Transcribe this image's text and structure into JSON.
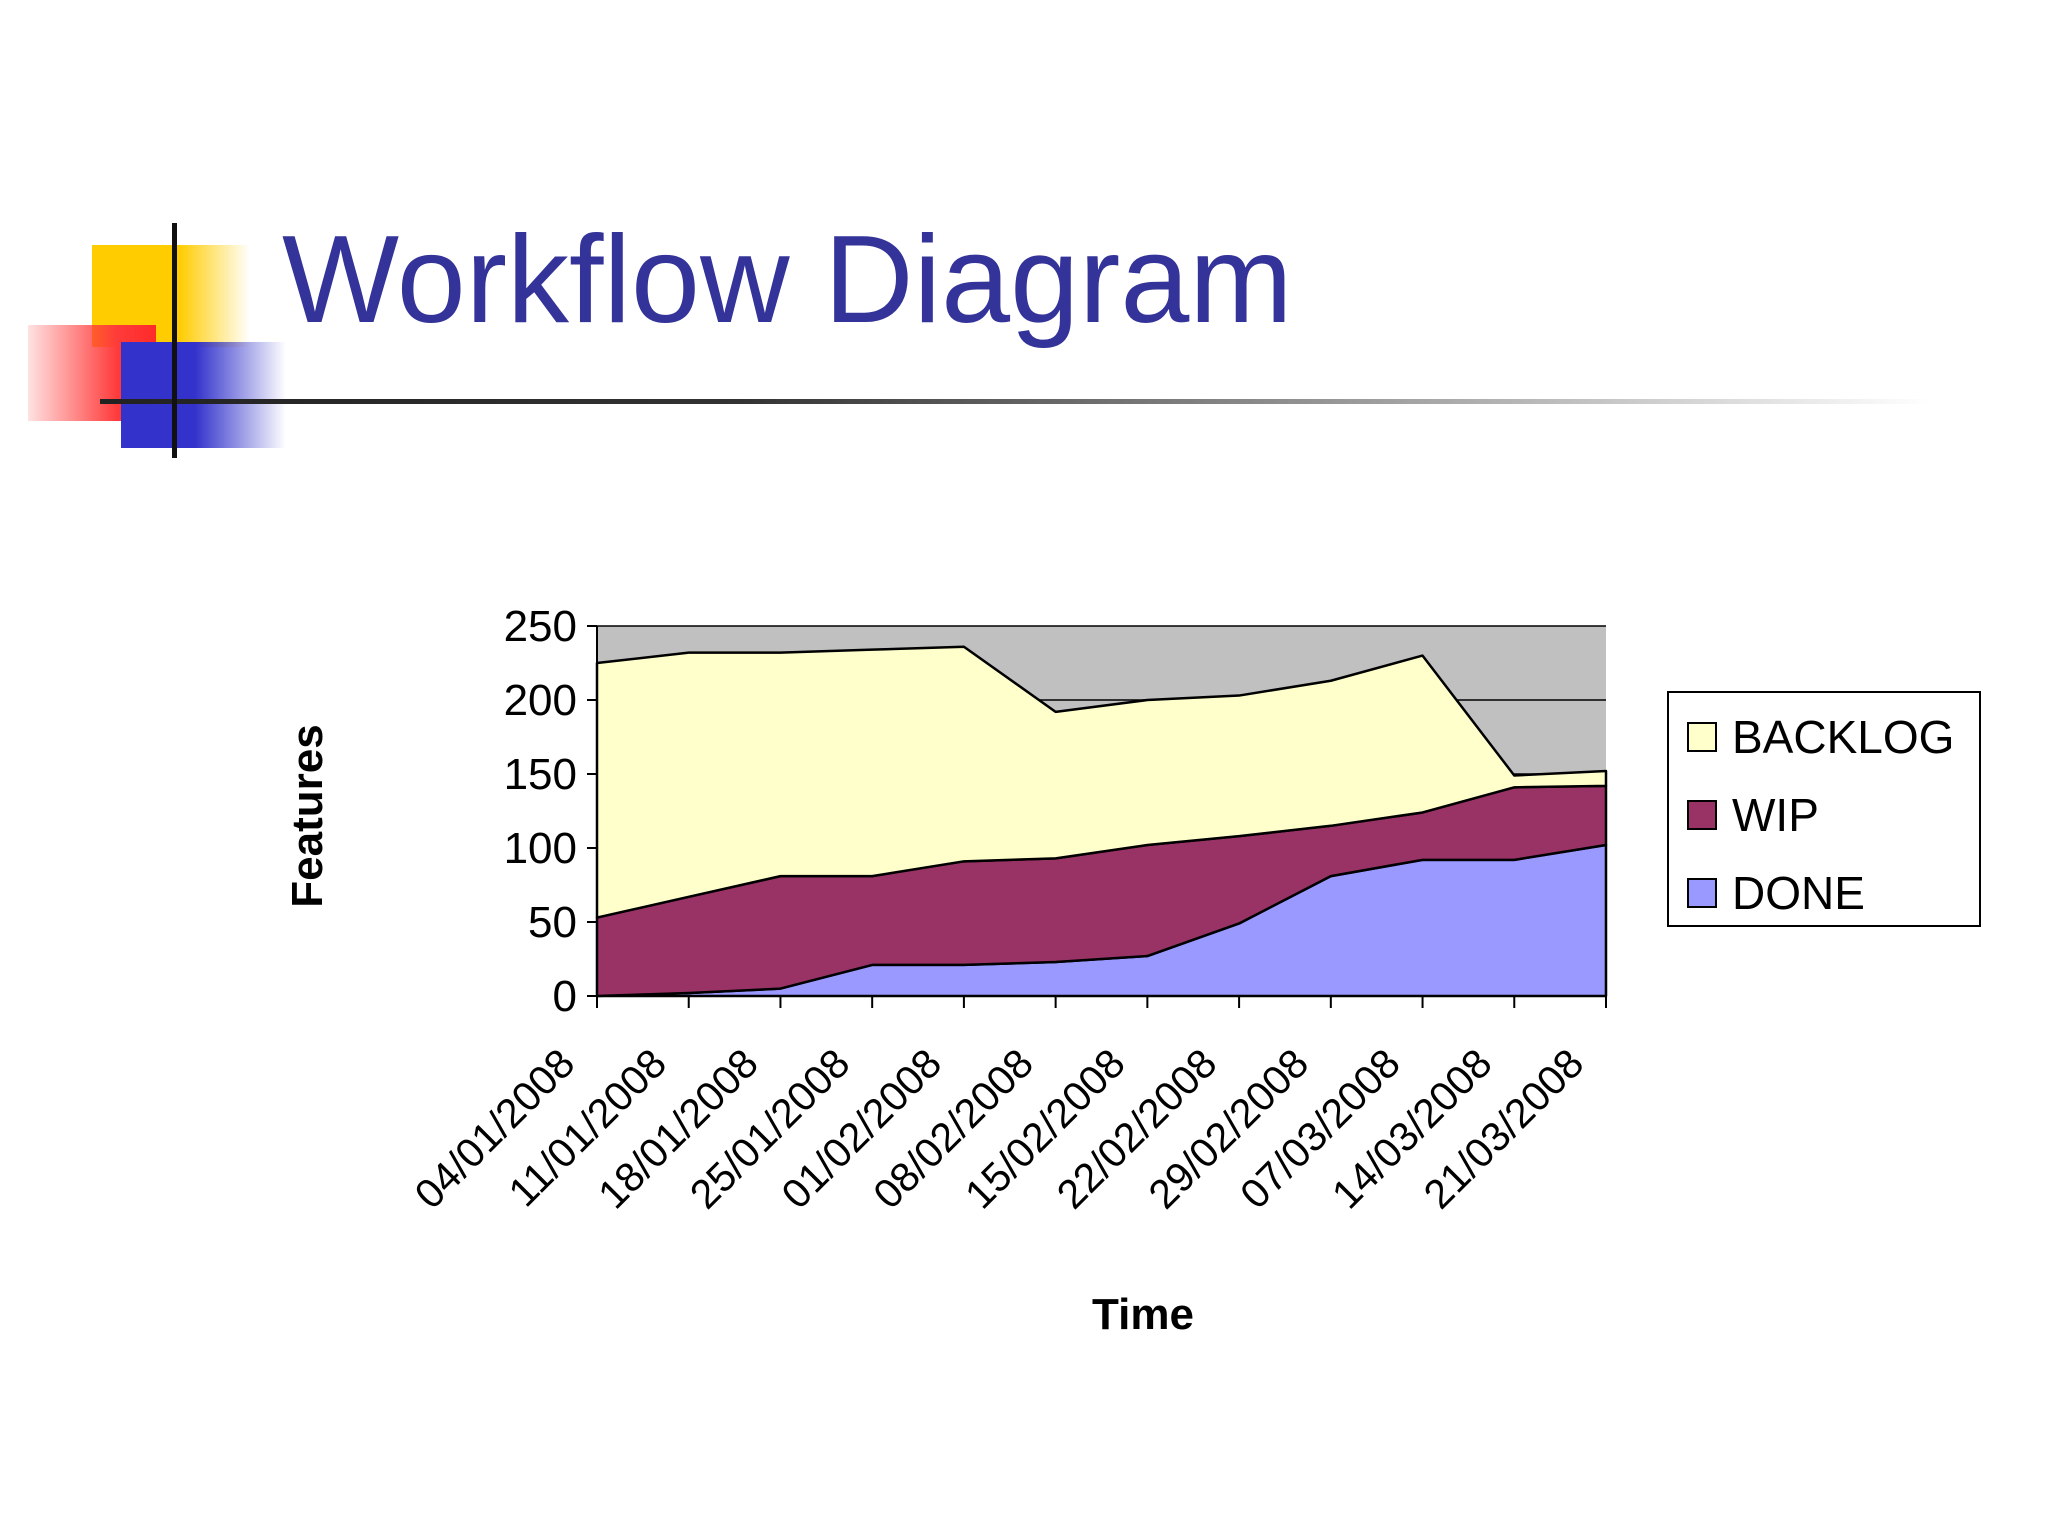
{
  "slide": {
    "title": "Workflow Diagram"
  },
  "chart_data": {
    "type": "area",
    "stacked": true,
    "x": [
      "04/01/2008",
      "11/01/2008",
      "18/01/2008",
      "25/01/2008",
      "01/02/2008",
      "08/02/2008",
      "15/02/2008",
      "22/02/2008",
      "29/02/2008",
      "07/03/2008",
      "14/03/2008",
      "21/03/2008"
    ],
    "series": [
      {
        "name": "DONE",
        "color": "#9999ff",
        "values": [
          0,
          2,
          5,
          21,
          21,
          23,
          27,
          49,
          81,
          92,
          92,
          102
        ]
      },
      {
        "name": "WIP",
        "color": "#993366",
        "values": [
          53,
          65,
          76,
          60,
          70,
          70,
          75,
          59,
          34,
          32,
          49,
          40
        ]
      },
      {
        "name": "BACKLOG",
        "color": "#ffffcc",
        "values": [
          172,
          165,
          151,
          153,
          145,
          99,
          98,
          95,
          98,
          106,
          8,
          10
        ]
      }
    ],
    "xlabel": "Time",
    "ylabel": "Features",
    "ylim": [
      0,
      250
    ],
    "yticks": [
      0,
      50,
      100,
      150,
      200,
      250
    ],
    "plot_background": "#c0c0c0",
    "grid": true,
    "legend_position": "right"
  }
}
